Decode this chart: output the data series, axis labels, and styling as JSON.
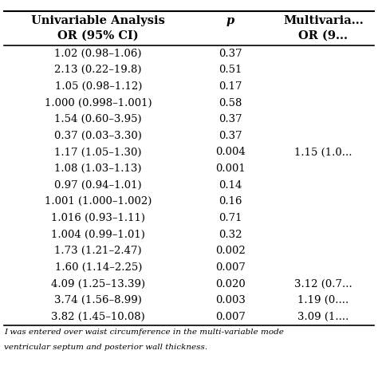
{
  "header_row1": [
    "Univariable Analysis",
    "p",
    "Multivaria..."
  ],
  "header_row2": [
    "OR (95% CI)",
    "",
    "OR (9..."
  ],
  "col1_header": "Univariable Analysis\nOR (95% CI)",
  "col2_header": "p",
  "col3_header": "Multivaria...\nOR (9...",
  "rows": [
    [
      "1.02 (0.98–1.06)",
      "0.37",
      ""
    ],
    [
      "2.13 (0.22–19.8)",
      "0.51",
      ""
    ],
    [
      "1.05 (0.98–1.12)",
      "0.17",
      ""
    ],
    [
      "1.000 (0.998–1.001)",
      "0.58",
      ""
    ],
    [
      "1.54 (0.60–3.95)",
      "0.37",
      ""
    ],
    [
      "0.37 (0.03–3.30)",
      "0.37",
      ""
    ],
    [
      "1.17 (1.05–1.30)",
      "0.004",
      "1.15 (1.0..."
    ],
    [
      "1.08 (1.03–1.13)",
      "0.001",
      ""
    ],
    [
      "0.97 (0.94–1.01)",
      "0.14",
      ""
    ],
    [
      "1.001 (1.000–1.002)",
      "0.16",
      ""
    ],
    [
      "1.016 (0.93–1.11)",
      "0.71",
      ""
    ],
    [
      "1.004 (0.99–1.01)",
      "0.32",
      ""
    ],
    [
      "1.73 (1.21–2.47)",
      "0.002",
      ""
    ],
    [
      "1.60 (1.14–2.25)",
      "0.007",
      ""
    ],
    [
      "4.09 (1.25–13.39)",
      "0.020",
      "3.12 (0.7..."
    ],
    [
      "3.74 (1.56–8.99)",
      "0.003",
      "1.19 (0...."
    ],
    [
      "3.82 (1.45–10.08)",
      "0.007",
      "3.09 (1...."
    ]
  ],
  "footnote": "I was entered over waist circumference in the multi-variable mode\nventricular septum and posterior wall thickness.",
  "bg_color": "#ffffff",
  "header_bg": "#ffffff",
  "text_color": "#000000",
  "line_color": "#000000",
  "font_size": 9.5,
  "header_font_size": 10.5
}
